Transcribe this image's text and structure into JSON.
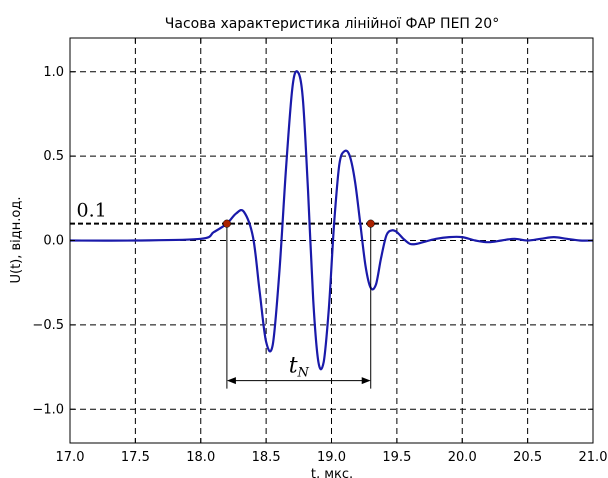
{
  "chart_data": {
    "type": "line",
    "title": "Часова характеристика лінійної ФАР ПЕП 20°",
    "xlabel": "t, мкс.",
    "ylabel": "U(t), відн.од.",
    "xlim": [
      17.0,
      21.0
    ],
    "ylim": [
      -1.2,
      1.2
    ],
    "xticks": [
      "17.0",
      "17.5",
      "18.0",
      "18.5",
      "19.0",
      "19.5",
      "20.0",
      "20.5",
      "21.0"
    ],
    "yticks": [
      "1.0",
      "0.5",
      "0.0",
      "−0.5",
      "−1.0"
    ],
    "grid": true,
    "series": [
      {
        "color": "#1a1aaa",
        "x": [
          17.0,
          17.5,
          18.0,
          18.1,
          18.2,
          18.27,
          18.33,
          18.4,
          18.45,
          18.5,
          18.55,
          18.6,
          18.65,
          18.7,
          18.74,
          18.78,
          18.82,
          18.86,
          18.9,
          18.94,
          18.98,
          19.02,
          19.06,
          19.1,
          19.14,
          19.18,
          19.22,
          19.26,
          19.3,
          19.34,
          19.38,
          19.42,
          19.46,
          19.5,
          19.55,
          19.6,
          19.65,
          19.7,
          19.8,
          19.9,
          20.0,
          20.1,
          20.2,
          20.3,
          20.4,
          20.5,
          20.6,
          20.7,
          20.8,
          20.9,
          21.0
        ],
        "y": [
          0.0,
          0.0,
          0.01,
          0.05,
          0.1,
          0.16,
          0.17,
          0.02,
          -0.3,
          -0.6,
          -0.62,
          -0.2,
          0.4,
          0.9,
          1.0,
          0.85,
          0.3,
          -0.35,
          -0.72,
          -0.72,
          -0.4,
          0.1,
          0.45,
          0.53,
          0.5,
          0.35,
          0.1,
          -0.15,
          -0.28,
          -0.26,
          -0.1,
          0.03,
          0.06,
          0.05,
          0.01,
          -0.02,
          -0.02,
          -0.01,
          0.01,
          0.02,
          0.02,
          0.0,
          -0.01,
          0.0,
          0.01,
          0.0,
          0.01,
          0.02,
          0.01,
          0.0,
          0.0
        ]
      }
    ],
    "threshold": {
      "value": 0.1,
      "label": "0.1"
    },
    "markers": {
      "x": [
        18.2,
        19.3
      ],
      "y": [
        0.1,
        0.1
      ],
      "color": "#aa2200"
    },
    "span": {
      "x1": 18.2,
      "x2": 19.3,
      "y": -0.83,
      "label_base": "t",
      "label_sub": "N"
    }
  }
}
